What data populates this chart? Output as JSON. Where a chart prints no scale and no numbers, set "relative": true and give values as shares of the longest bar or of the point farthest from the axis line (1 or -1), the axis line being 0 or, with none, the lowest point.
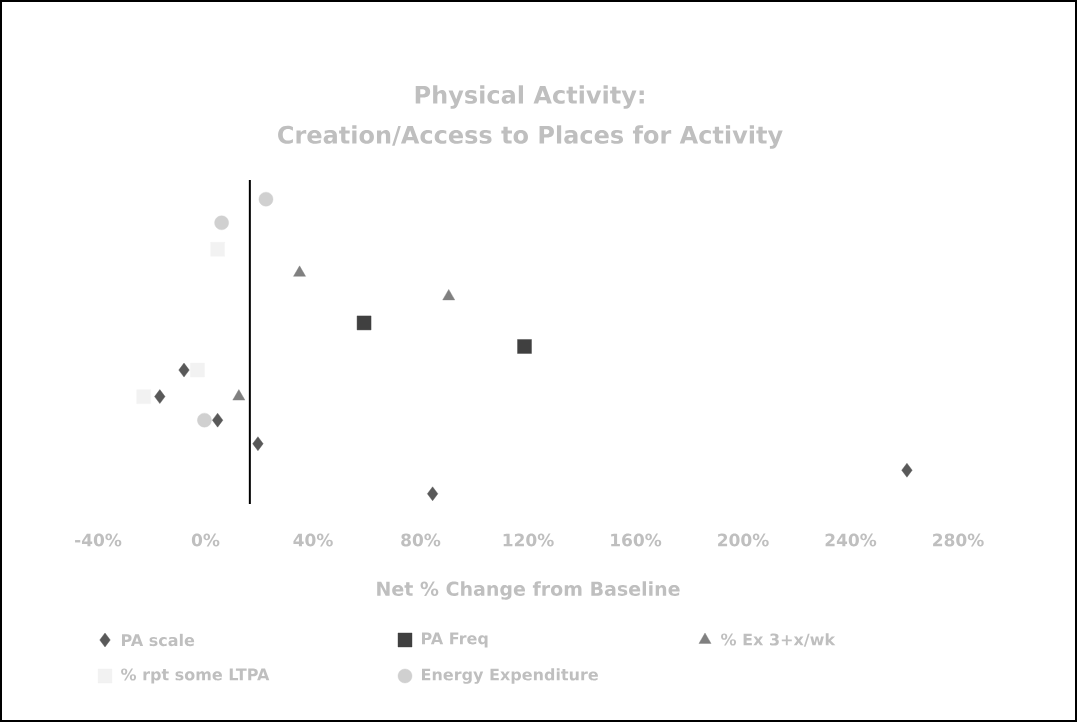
{
  "chart_data": {
    "type": "scatter",
    "title": "Physical Activity:",
    "subtitle": "Creation/Access to Places for Activity",
    "xlabel": "Net % Change from Baseline",
    "relative": true,
    "xlim": [
      -40,
      280
    ],
    "xticks": [
      {
        "value": -40,
        "label": "-40%"
      },
      {
        "value": 0,
        "label": "0%"
      },
      {
        "value": 40,
        "label": "40%"
      },
      {
        "value": 80,
        "label": "80%"
      },
      {
        "value": 120,
        "label": "120%"
      },
      {
        "value": 160,
        "label": "160%"
      },
      {
        "value": 200,
        "label": "200%"
      },
      {
        "value": 240,
        "label": "240%"
      },
      {
        "value": 280,
        "label": "280%"
      }
    ],
    "tick_labels": "x",
    "grid": false,
    "legend": "bottom",
    "ref_lines": [
      {
        "axis": "x",
        "value": 16.5,
        "color": "#000000"
      }
    ],
    "series": [
      {
        "name": "PA scale",
        "color": "#595959",
        "marker": "diamond",
        "x": [
          -8,
          -17,
          4.5,
          19.5,
          84.5,
          261
        ],
        "values": [
          0.42,
          0.33,
          0.25,
          0.17,
          0,
          0.08
        ]
      },
      {
        "name": "PA Freq",
        "color": "#404040",
        "marker": "square",
        "x": [
          59,
          118.7
        ],
        "values": [
          0.58,
          0.5
        ]
      },
      {
        "name": "% Ex 3+x/wk",
        "color": "#808080",
        "marker": "triangle",
        "x": [
          35,
          90.5,
          12.4
        ],
        "values": [
          0.75,
          0.67,
          0.33
        ]
      },
      {
        "name": "% rpt some LTPA",
        "color": "#f2f2f2",
        "marker": "square",
        "x": [
          4.5,
          -3,
          -23
        ],
        "values": [
          0.83,
          0.42,
          0.33
        ]
      },
      {
        "name": "Energy Expenditure",
        "color": "#d0d0d0",
        "marker": "circle",
        "x": [
          22.5,
          6,
          -0.4
        ],
        "values": [
          1,
          0.92,
          0.25
        ]
      }
    ]
  }
}
